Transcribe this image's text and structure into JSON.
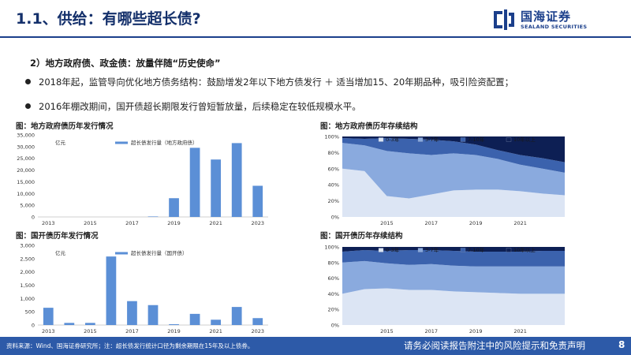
{
  "header": {
    "title": "1.1、供给：有哪些超长债?",
    "logo_cn": "国海证券",
    "logo_en": "SEALAND SECURITIES",
    "brand_color": "#1b3f8b"
  },
  "content": {
    "subhead": "2）地方政府债、政金债：放量伴随“历史使命”",
    "bullets": [
      "2018年起，监管导向优化地方债务结构：鼓励增发2年以下地方债发行 ＋ 适当增加15、20年期品种，吸引险资配置；",
      "2016年棚改期间，国开债超长期限发行曾短暂放量，后续稳定在较低规模水平。"
    ]
  },
  "footer": {
    "source": "资料来源：Wind、国海证券研究所；注：超长债发行统计口径为剩余期限在15年及以上债券。",
    "disclaimer": "请务必阅读报告附注中的风险提示和免责声明",
    "page": "8"
  },
  "chart_data": [
    {
      "id": "local-issuance",
      "type": "bar",
      "title": "图：地方政府债历年发行情况",
      "unit_label": "亿元",
      "series": [
        {
          "name": "超长债发行量（地方政府债）",
          "color": "#5b8fd6"
        }
      ],
      "x": [
        2013,
        2014,
        2015,
        2016,
        2017,
        2018,
        2019,
        2020,
        2021,
        2022,
        2023
      ],
      "values": [
        0,
        0,
        0,
        0,
        0,
        200,
        8000,
        29500,
        24500,
        31500,
        13300
      ],
      "x_ticks": [
        "2013",
        "2015",
        "2017",
        "2019",
        "2021",
        "2023"
      ],
      "ylim": [
        0,
        35000
      ],
      "y_ticks": [
        "0",
        "5,000",
        "10,000",
        "15,000",
        "20,000",
        "25,000",
        "30,000",
        "35,000"
      ],
      "grid": false
    },
    {
      "id": "local-structure",
      "type": "area",
      "stacked": true,
      "title": "图：地方政府债历年存续结构",
      "x": [
        2013,
        2014,
        2015,
        2016,
        2017,
        2018,
        2019,
        2020,
        2021,
        2022,
        2023
      ],
      "series": [
        {
          "name": "0-3年",
          "color": "#dce5f4",
          "values": [
            60,
            57,
            26,
            23,
            28,
            33,
            34,
            34,
            32,
            29,
            27
          ]
        },
        {
          "name": "3-7年",
          "color": "#8aaade",
          "values": [
            32,
            32,
            56,
            56,
            49,
            46,
            43,
            38,
            33,
            31,
            28
          ]
        },
        {
          "name": "7-10年",
          "color": "#3b62ad",
          "values": [
            6,
            8,
            16,
            18,
            19,
            15,
            13,
            11,
            12,
            13,
            13
          ]
        },
        {
          "name": "10年以上",
          "color": "#0d1f54",
          "values": [
            2,
            3,
            2,
            3,
            4,
            6,
            10,
            17,
            23,
            27,
            32
          ]
        }
      ],
      "x_ticks": [
        "2015",
        "2017",
        "2019",
        "2021"
      ],
      "ylim": [
        0,
        100
      ],
      "y_ticks": [
        "0%",
        "20%",
        "40%",
        "60%",
        "80%",
        "100%"
      ],
      "legend": "top"
    },
    {
      "id": "cdb-issuance",
      "type": "bar",
      "title": "图：国开债历年发行情况",
      "unit_label": "亿元",
      "series": [
        {
          "name": "超长债发行量（国开债）",
          "color": "#5b8fd6"
        }
      ],
      "x": [
        2013,
        2014,
        2015,
        2016,
        2017,
        2018,
        2019,
        2020,
        2021,
        2022,
        2023
      ],
      "values": [
        650,
        80,
        80,
        2580,
        900,
        750,
        30,
        420,
        200,
        680,
        260
      ],
      "x_ticks": [
        "2013",
        "2015",
        "2017",
        "2019",
        "2021",
        "2023"
      ],
      "ylim": [
        0,
        3000
      ],
      "y_ticks": [
        "0",
        "500",
        "1,000",
        "1,500",
        "2,000",
        "2,500",
        "3,000"
      ],
      "grid": false
    },
    {
      "id": "cdb-structure",
      "type": "area",
      "stacked": true,
      "title": "图：国开债历年存续结构",
      "x": [
        2013,
        2014,
        2015,
        2016,
        2017,
        2018,
        2019,
        2020,
        2021,
        2022,
        2023
      ],
      "series": [
        {
          "name": "0-3年",
          "color": "#dce5f4",
          "values": [
            40,
            46,
            47,
            45,
            45,
            43,
            42,
            41,
            40,
            40,
            40
          ]
        },
        {
          "name": "3-7年",
          "color": "#8aaade",
          "values": [
            40,
            36,
            32,
            32,
            33,
            33,
            33,
            34,
            35,
            35,
            35
          ]
        },
        {
          "name": "7-10年",
          "color": "#3b62ad",
          "values": [
            14,
            14,
            16,
            19,
            18,
            19,
            19,
            19,
            19,
            20,
            20
          ]
        },
        {
          "name": "10年以上",
          "color": "#0d1f54",
          "values": [
            6,
            4,
            5,
            4,
            4,
            5,
            6,
            6,
            6,
            5,
            5
          ]
        }
      ],
      "x_ticks": [
        "2015",
        "2017",
        "2019",
        "2021"
      ],
      "ylim": [
        0,
        100
      ],
      "y_ticks": [
        "0%",
        "20%",
        "40%",
        "60%",
        "80%",
        "100%"
      ],
      "legend": "top"
    }
  ]
}
